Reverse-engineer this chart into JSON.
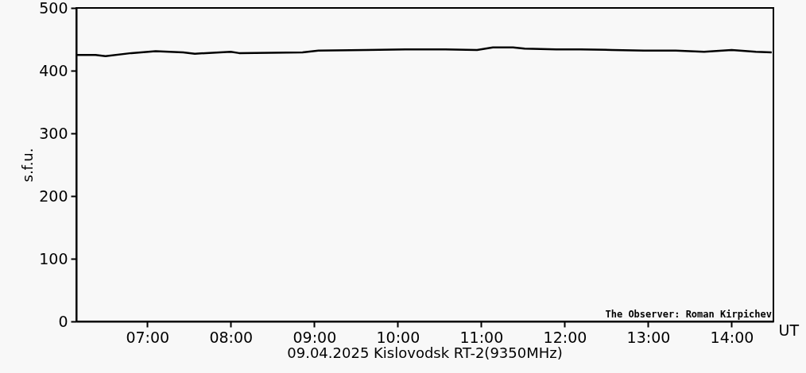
{
  "chart_data": {
    "type": "line",
    "title": "09.04.2025 Kislovodsk RT-2(9350MHz)",
    "xlabel": "UT",
    "ylabel": "s.f.u.",
    "annotations": [
      "The Observer: Roman Kirpichev"
    ],
    "x": [
      6.15,
      6.38,
      6.5,
      6.81,
      7.1,
      7.43,
      7.57,
      8.0,
      8.1,
      8.86,
      9.05,
      9.62,
      10.19,
      10.57,
      10.95,
      11.14,
      11.38,
      11.52,
      11.9,
      12.19,
      12.57,
      12.95,
      13.33,
      13.67,
      14.0,
      14.29,
      14.48
    ],
    "series": [
      {
        "color": "#000000",
        "values": [
          425,
          425,
          423,
          428,
          431,
          429,
          427,
          430,
          428,
          429,
          432,
          433,
          434,
          434,
          433,
          437,
          437,
          435,
          434,
          434,
          433,
          432,
          432,
          430,
          433,
          430,
          429
        ]
      }
    ],
    "xlim": [
      6.15,
      14.5
    ],
    "xticks": [
      {
        "value": 7,
        "label": "07:00"
      },
      {
        "value": 8,
        "label": "08:00"
      },
      {
        "value": 9,
        "label": "09:00"
      },
      {
        "value": 10,
        "label": "10:00"
      },
      {
        "value": 11,
        "label": "11:00"
      },
      {
        "value": 12,
        "label": "12:00"
      },
      {
        "value": 13,
        "label": "13:00"
      },
      {
        "value": 14,
        "label": "14:00"
      }
    ],
    "ylim": [
      0,
      500
    ],
    "yticks": [
      0,
      100,
      200,
      300,
      400,
      500
    ],
    "grid": false,
    "marker": "none",
    "line_style": "solid"
  }
}
